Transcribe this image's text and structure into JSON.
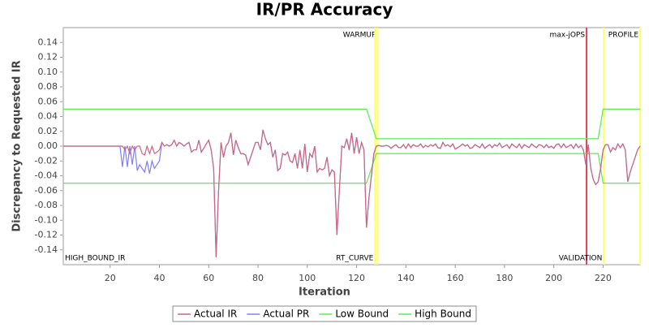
{
  "chart_data": {
    "type": "line",
    "title": "IR/PR Accuracy",
    "x_label": "Iteration",
    "y_label": "Discrepancy to Requested IR",
    "xlim": [
      1,
      235
    ],
    "ylim": [
      -0.16,
      0.16
    ],
    "xticks": [
      20,
      40,
      60,
      80,
      100,
      120,
      140,
      160,
      180,
      200,
      220
    ],
    "yticks": [
      {
        "value": -0.14,
        "label": "-0.14"
      },
      {
        "value": -0.12,
        "label": "-0.12"
      },
      {
        "value": -0.1,
        "label": "-0.10"
      },
      {
        "value": -0.08,
        "label": "-0.08"
      },
      {
        "value": -0.06,
        "label": "-0.06"
      },
      {
        "value": -0.04,
        "label": "-0.04"
      },
      {
        "value": -0.02,
        "label": "-0.02"
      },
      {
        "value": 0,
        "label": "0.00"
      },
      {
        "value": 0.02,
        "label": "0.02"
      },
      {
        "value": 0.04,
        "label": "0.04"
      },
      {
        "value": 0.06,
        "label": "0.06"
      },
      {
        "value": 0.08,
        "label": "0.08"
      },
      {
        "value": 0.1,
        "label": "0.10"
      },
      {
        "value": 0.12,
        "label": "0.12"
      },
      {
        "value": 0.14,
        "label": "0.14"
      }
    ],
    "grid": false,
    "legend": "bottom",
    "x": [
      1,
      24,
      25,
      26,
      27,
      28,
      29,
      30,
      31,
      32,
      33,
      34,
      35,
      36,
      37,
      38,
      39,
      40,
      41,
      42,
      43,
      44,
      45,
      46,
      47,
      48,
      49,
      50,
      51,
      52,
      53,
      54,
      55,
      56,
      57,
      58,
      59,
      60,
      61,
      62,
      63,
      64,
      65,
      66,
      67,
      68,
      69,
      70,
      71,
      72,
      73,
      74,
      75,
      76,
      77,
      78,
      79,
      80,
      81,
      82,
      83,
      84,
      85,
      86,
      87,
      88,
      89,
      90,
      91,
      92,
      93,
      94,
      95,
      96,
      97,
      98,
      99,
      100,
      101,
      102,
      103,
      104,
      105,
      106,
      107,
      108,
      109,
      110,
      111,
      112,
      113,
      114,
      115,
      116,
      117,
      118,
      119,
      120,
      121,
      122,
      123,
      124,
      125,
      126,
      127,
      128,
      129,
      130,
      131,
      132,
      133,
      134,
      135,
      136,
      137,
      138,
      139,
      140,
      141,
      142,
      143,
      144,
      145,
      146,
      147,
      148,
      149,
      150,
      151,
      152,
      153,
      154,
      155,
      156,
      157,
      158,
      159,
      160,
      161,
      162,
      163,
      164,
      165,
      166,
      167,
      168,
      169,
      170,
      171,
      172,
      173,
      174,
      175,
      176,
      177,
      178,
      179,
      180,
      181,
      182,
      183,
      184,
      185,
      186,
      187,
      188,
      189,
      190,
      191,
      192,
      193,
      194,
      195,
      196,
      197,
      198,
      199,
      200,
      201,
      202,
      203,
      204,
      205,
      206,
      207,
      208,
      209,
      210,
      211,
      212,
      213,
      214,
      215,
      216,
      217,
      218,
      219,
      220,
      221,
      222,
      223,
      224,
      225,
      226,
      227,
      228,
      229,
      230,
      231,
      232,
      233,
      234,
      235
    ],
    "series": [
      {
        "name": "Actual IR",
        "color": "#cc6680",
        "values": [
          0,
          0,
          0,
          -0.005,
          0,
          -0.01,
          0,
          -0.005,
          0,
          0,
          -0.01,
          -0.012,
          0,
          -0.01,
          0,
          -0.01,
          -0.008,
          -0.005,
          0.005,
          0,
          0.002,
          0,
          0.002,
          0.008,
          0,
          0.005,
          0.003,
          0,
          0.003,
          0.005,
          -0.008,
          -0.005,
          -0.005,
          0.008,
          -0.008,
          -0.003,
          0.003,
          0.008,
          -0.005,
          -0.03,
          -0.15,
          -0.06,
          0.005,
          -0.015,
          0,
          0.005,
          0.018,
          -0.012,
          0.008,
          -0.002,
          -0.01,
          -0.01,
          -0.012,
          -0.025,
          -0.015,
          -0.005,
          0.005,
          0.005,
          -0.005,
          0.022,
          0.01,
          0.002,
          0.005,
          -0.015,
          -0.005,
          -0.033,
          -0.03,
          -0.01,
          -0.012,
          -0.008,
          -0.02,
          -0.022,
          -0.01,
          -0.03,
          -0.005,
          -0.03,
          0.003,
          -0.035,
          -0.01,
          -0.015,
          0,
          -0.035,
          -0.03,
          -0.032,
          -0.03,
          -0.015,
          -0.04,
          -0.032,
          -0.035,
          -0.12,
          -0.06,
          0,
          -0.002,
          0.01,
          -0.005,
          0.018,
          -0.01,
          0.012,
          -0.01,
          0.005,
          -0.005,
          -0.11,
          -0.07,
          -0.04,
          -0.01,
          0,
          0.001,
          0,
          0,
          0.001,
          0,
          -0.003,
          0,
          0.002,
          -0.002,
          -0.002,
          0.002,
          -0.003,
          0.003,
          -0.002,
          0.002,
          0,
          0,
          0.003,
          -0.002,
          0.001,
          -0.001,
          0.002,
          0,
          0.003,
          -0.002,
          -0.003,
          0.005,
          0,
          0.002,
          -0.001,
          0.003,
          -0.004,
          -0.002,
          0,
          0.003,
          0,
          0.002,
          -0.003,
          -0.002,
          0.002,
          0,
          -0.002,
          0.003,
          -0.003,
          0,
          0.002,
          -0.002,
          0.002,
          0,
          0.004,
          -0.002,
          0,
          0.002,
          -0.003,
          0.003,
          0,
          -0.002,
          0.003,
          -0.003,
          0.002,
          0,
          -0.002,
          0.003,
          0,
          -0.002,
          0.002,
          0.001,
          -0.002,
          0.002,
          -0.002,
          0,
          -0.003,
          0.002,
          0.003,
          -0.002,
          0.003,
          -0.002,
          0,
          0.002,
          -0.003,
          0.003,
          -0.002,
          0.001,
          -0.005,
          -0.025,
          0.002,
          -0.03,
          -0.045,
          -0.052,
          -0.048,
          -0.03,
          -0.005,
          0.002,
          0.002,
          -0.008,
          -0.002,
          -0.005,
          0.003,
          -0.002,
          0.003,
          -0.005,
          -0.048,
          -0.035,
          -0.025,
          -0.015,
          -0.005,
          0
        ]
      },
      {
        "name": "Actual PR",
        "color": "#8080f0",
        "values": [
          0,
          0,
          -0.028,
          0,
          -0.028,
          0,
          -0.025,
          0,
          -0.033,
          -0.025,
          -0.03,
          -0.035,
          -0.02,
          -0.037,
          -0.02,
          -0.03,
          -0.025,
          -0.02,
          0.005,
          0,
          0.002,
          0,
          0.002,
          0.008,
          0,
          0.005,
          0.003,
          0,
          0.003,
          0.005,
          -0.008,
          -0.005,
          -0.005,
          0.008,
          -0.008,
          -0.003,
          0.003,
          0.008,
          -0.005,
          -0.03,
          -0.15,
          -0.06,
          0.005,
          -0.015,
          0,
          0.005,
          0.018,
          -0.012,
          0.008,
          -0.002,
          -0.01,
          -0.01,
          -0.012,
          -0.025,
          -0.015,
          -0.005,
          0.005,
          0.005,
          -0.005,
          0.022,
          0.01,
          0.002,
          0.005,
          -0.015,
          -0.005,
          -0.033,
          -0.03,
          -0.01,
          -0.012,
          -0.008,
          -0.02,
          -0.022,
          -0.01,
          -0.03,
          -0.005,
          -0.03,
          0.003,
          -0.035,
          -0.01,
          -0.015,
          0,
          -0.035,
          -0.03,
          -0.032,
          -0.03,
          -0.015,
          -0.04,
          -0.032,
          -0.035,
          -0.12,
          -0.06,
          0,
          -0.002,
          0.01,
          -0.005,
          0.018,
          -0.01,
          0.012,
          -0.01,
          0.005,
          -0.005,
          -0.11,
          -0.07,
          -0.04,
          -0.01,
          0,
          0.001,
          0,
          0,
          0.001,
          0,
          -0.003,
          0,
          0.002,
          -0.002,
          -0.002,
          0.002,
          -0.003,
          0.003,
          -0.002,
          0.002,
          0,
          0,
          0.003,
          -0.002,
          0.001,
          -0.001,
          0.002,
          0,
          0.003,
          -0.002,
          -0.003,
          0.005,
          0,
          0.002,
          -0.001,
          0.003,
          -0.004,
          -0.002,
          0,
          0.003,
          0,
          0.002,
          -0.003,
          -0.002,
          0.002,
          0,
          -0.002,
          0.003,
          -0.003,
          0,
          0.002,
          -0.002,
          0.002,
          0,
          0.004,
          -0.002,
          0,
          0.002,
          -0.003,
          0.003,
          0,
          -0.002,
          0.003,
          -0.003,
          0.002,
          0,
          -0.002,
          0.003,
          0,
          -0.002,
          0.002,
          0.001,
          -0.002,
          0.002,
          -0.002,
          0,
          -0.003,
          0.002,
          0.003,
          -0.002,
          0.003,
          -0.002,
          0,
          0.002,
          -0.003,
          0.003,
          -0.002,
          0.001,
          -0.005,
          -0.025,
          0.002,
          -0.03,
          -0.045,
          -0.052,
          -0.048,
          -0.03,
          -0.005,
          0.002,
          0.002,
          -0.008,
          -0.002,
          -0.005,
          0.003,
          -0.002,
          0.003,
          -0.005,
          -0.048,
          -0.035,
          -0.025,
          -0.015,
          -0.005,
          0
        ]
      },
      {
        "name": "Low Bound",
        "color": "#55ee55",
        "x": [
          1,
          124,
          128,
          218,
          220,
          235
        ],
        "values": [
          -0.05,
          -0.05,
          -0.01,
          -0.01,
          -0.05,
          -0.05
        ]
      },
      {
        "name": "High Bound",
        "color": "#55ee55",
        "x": [
          1,
          124,
          128,
          218,
          220,
          235
        ],
        "values": [
          0.05,
          0.05,
          0.01,
          0.01,
          0.05,
          0.05
        ]
      }
    ],
    "markers": [
      {
        "label": "HIGH_BOUND_IR",
        "x": 1,
        "position": "bottom",
        "color": "#cccccc"
      },
      {
        "label": "WARMUP",
        "x": 128.5,
        "position": "top",
        "color": "#ffff66"
      },
      {
        "label": "RT_CURVE",
        "x": 127.5,
        "position": "bottom",
        "color": "#ffff66"
      },
      {
        "label": "max-jOPS",
        "x": 213.3,
        "position": "top",
        "color": "#e04050"
      },
      {
        "label": "VALIDATION",
        "x": 220.3,
        "position": "bottom",
        "color": "#ffff66"
      },
      {
        "label": "PROFILE",
        "x": 235,
        "position": "top",
        "color": "#ffff66"
      }
    ]
  }
}
